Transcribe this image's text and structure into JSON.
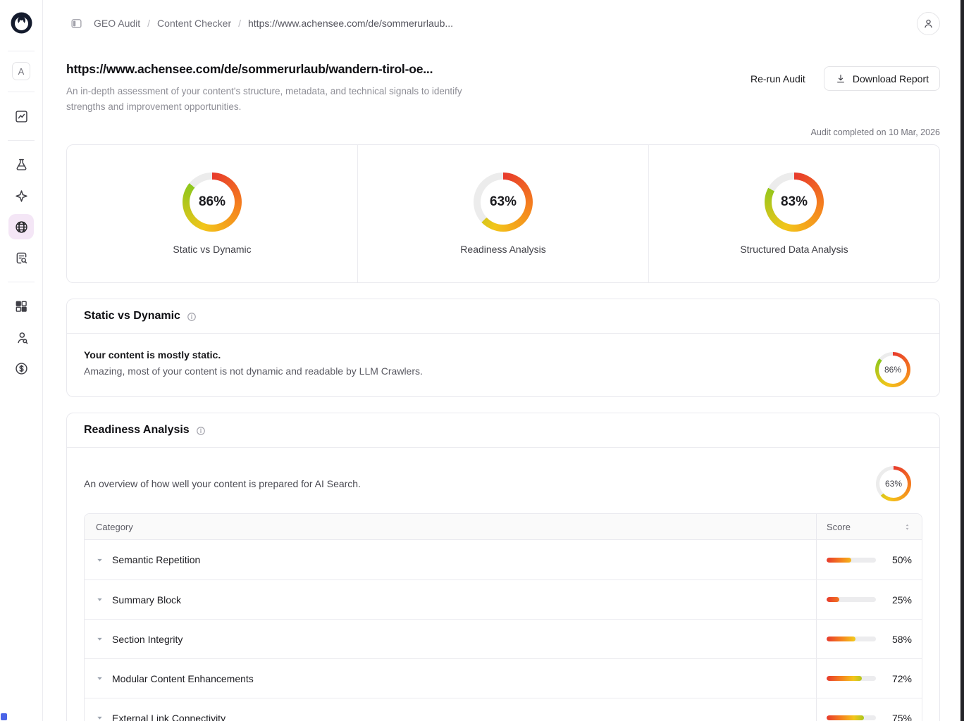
{
  "colors": {
    "red": "#e7392c",
    "orange": "#f5821e",
    "yellow": "#f3c51b",
    "green": "#85c71d",
    "track": "#ececec",
    "active_nav_bg": "#f4e6f6"
  },
  "sidebar": {
    "workspace_initial": "A",
    "items": [
      {
        "icon": "analytics-icon"
      },
      {
        "icon": "flask-icon"
      },
      {
        "icon": "sparkle-icon"
      },
      {
        "icon": "globe-icon",
        "active": true
      },
      {
        "icon": "file-search-icon"
      },
      {
        "icon": "grid-icon"
      },
      {
        "icon": "user-search-icon"
      },
      {
        "icon": "dollar-circle-icon"
      }
    ]
  },
  "topbar": {
    "breadcrumb": [
      "GEO Audit",
      "Content Checker",
      "https://www.achensee.com/de/sommerurlaub..."
    ]
  },
  "header": {
    "title": "https://www.achensee.com/de/sommerurlaub/wandern-tirol-oe...",
    "description": "An in-depth assessment of your content's structure, metadata, and technical signals to identify strengths and improvement opportunities.",
    "rerun_label": "Re-run Audit",
    "download_label": "Download Report",
    "audit_date": "Audit completed on 10 Mar, 2026"
  },
  "summary": {
    "gauges": [
      {
        "label": "Static vs Dynamic",
        "value": 86
      },
      {
        "label": "Readiness Analysis",
        "value": 63
      },
      {
        "label": "Structured Data Analysis",
        "value": 83
      }
    ]
  },
  "sections": {
    "static_vs_dynamic": {
      "title": "Static vs Dynamic",
      "headline": "Your content is mostly static.",
      "detail": "Amazing, most of your content is not dynamic and readable by LLM Crawlers.",
      "gauge_value": 86
    },
    "readiness": {
      "title": "Readiness Analysis",
      "description": "An overview of how well your content is prepared for AI Search.",
      "gauge_value": 63,
      "table": {
        "category_header": "Category",
        "score_header": "Score",
        "rows": [
          {
            "category": "Semantic Repetition",
            "score": 50
          },
          {
            "category": "Summary Block",
            "score": 25
          },
          {
            "category": "Section Integrity",
            "score": 58
          },
          {
            "category": "Modular Content Enhancements",
            "score": 72
          },
          {
            "category": "External Link Connectivity",
            "score": 75
          }
        ]
      }
    }
  }
}
